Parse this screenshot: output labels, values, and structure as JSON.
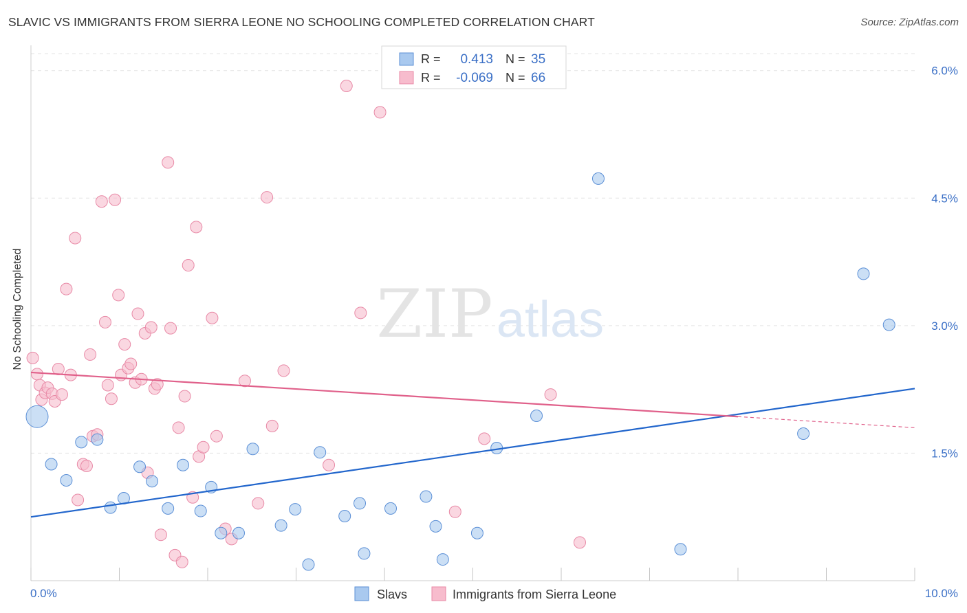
{
  "header": {
    "title": "SLAVIC VS IMMIGRANTS FROM SIERRA LEONE NO SCHOOLING COMPLETED CORRELATION CHART",
    "source": "Source: ZipAtlas.com"
  },
  "watermark": {
    "part1": "ZIP",
    "part2": "atlas"
  },
  "legend_box": {
    "rows": [
      {
        "r_label": "R =",
        "r_value": "0.413",
        "n_label": "N =",
        "n_value": "35"
      },
      {
        "r_label": "R =",
        "r_value": "-0.069",
        "n_label": "N =",
        "n_value": "66"
      }
    ]
  },
  "colors": {
    "slavs_fill": "#a9c9ef",
    "slavs_stroke": "#5b8fd6",
    "slavs_line": "#2266cc",
    "sl_fill": "#f7bccd",
    "sl_stroke": "#e889a6",
    "sl_line": "#e0608a",
    "value_text": "#3a6fc6",
    "grid": "#e3e3e3",
    "axis": "#cccccc"
  },
  "chart_data": {
    "type": "scatter",
    "xlabel": "",
    "ylabel": "No Schooling Completed",
    "xlim": [
      0,
      10
    ],
    "ylim": [
      0,
      6.2
    ],
    "x_ticks": [
      0,
      1,
      2,
      3,
      4,
      5,
      6,
      7,
      8,
      9,
      10
    ],
    "x_tick_labels_shown": [
      {
        "value": 0,
        "label": "0.0%"
      },
      {
        "value": 10,
        "label": "10.0%"
      }
    ],
    "y_ticks": [
      {
        "value": 1.5,
        "label": "1.5%"
      },
      {
        "value": 3.0,
        "label": "3.0%"
      },
      {
        "value": 4.5,
        "label": "4.5%"
      },
      {
        "value": 6.0,
        "label": "6.0%"
      }
    ],
    "grid": true,
    "legend_position": "top-center",
    "series": [
      {
        "name": "Slavs",
        "color": "#a9c9ef",
        "points": [
          {
            "x": 0.07,
            "y": 1.93,
            "big": true
          },
          {
            "x": 0.23,
            "y": 1.37
          },
          {
            "x": 0.4,
            "y": 1.18
          },
          {
            "x": 0.57,
            "y": 1.63
          },
          {
            "x": 0.75,
            "y": 1.66
          },
          {
            "x": 0.9,
            "y": 0.86
          },
          {
            "x": 1.05,
            "y": 0.97
          },
          {
            "x": 1.23,
            "y": 1.34
          },
          {
            "x": 1.37,
            "y": 1.17
          },
          {
            "x": 1.55,
            "y": 0.85
          },
          {
            "x": 1.72,
            "y": 1.36
          },
          {
            "x": 1.92,
            "y": 0.82
          },
          {
            "x": 2.04,
            "y": 1.1
          },
          {
            "x": 2.15,
            "y": 0.56
          },
          {
            "x": 2.35,
            "y": 0.56
          },
          {
            "x": 2.51,
            "y": 1.55
          },
          {
            "x": 2.83,
            "y": 0.65
          },
          {
            "x": 2.99,
            "y": 0.84
          },
          {
            "x": 3.14,
            "y": 0.19
          },
          {
            "x": 3.27,
            "y": 1.51
          },
          {
            "x": 3.55,
            "y": 0.76
          },
          {
            "x": 3.72,
            "y": 0.91
          },
          {
            "x": 3.77,
            "y": 0.32
          },
          {
            "x": 4.07,
            "y": 0.85
          },
          {
            "x": 4.47,
            "y": 0.99
          },
          {
            "x": 4.58,
            "y": 0.64
          },
          {
            "x": 4.66,
            "y": 0.25
          },
          {
            "x": 5.05,
            "y": 0.56
          },
          {
            "x": 5.27,
            "y": 1.56
          },
          {
            "x": 5.72,
            "y": 1.94
          },
          {
            "x": 6.42,
            "y": 4.73
          },
          {
            "x": 7.35,
            "y": 0.37
          },
          {
            "x": 8.74,
            "y": 1.73
          },
          {
            "x": 9.42,
            "y": 3.61
          },
          {
            "x": 9.71,
            "y": 3.01
          }
        ],
        "trend": {
          "x0": 0,
          "y0": 0.75,
          "x1": 10,
          "y1": 2.26
        }
      },
      {
        "name": "Immigrants from Sierra Leone",
        "color": "#f7bccd",
        "points": [
          {
            "x": 0.02,
            "y": 2.62
          },
          {
            "x": 0.07,
            "y": 2.43
          },
          {
            "x": 0.1,
            "y": 2.3
          },
          {
            "x": 0.12,
            "y": 2.13
          },
          {
            "x": 0.16,
            "y": 2.21
          },
          {
            "x": 0.19,
            "y": 2.27
          },
          {
            "x": 0.24,
            "y": 2.2
          },
          {
            "x": 0.27,
            "y": 2.11
          },
          {
            "x": 0.31,
            "y": 2.49
          },
          {
            "x": 0.35,
            "y": 2.19
          },
          {
            "x": 0.4,
            "y": 3.43
          },
          {
            "x": 0.45,
            "y": 2.42
          },
          {
            "x": 0.5,
            "y": 4.03
          },
          {
            "x": 0.53,
            "y": 0.95
          },
          {
            "x": 0.59,
            "y": 1.37
          },
          {
            "x": 0.63,
            "y": 1.35
          },
          {
            "x": 0.67,
            "y": 2.66
          },
          {
            "x": 0.7,
            "y": 1.7
          },
          {
            "x": 0.75,
            "y": 1.72
          },
          {
            "x": 0.8,
            "y": 4.46
          },
          {
            "x": 0.84,
            "y": 3.04
          },
          {
            "x": 0.87,
            "y": 2.3
          },
          {
            "x": 0.91,
            "y": 2.14
          },
          {
            "x": 0.95,
            "y": 4.48
          },
          {
            "x": 0.99,
            "y": 3.36
          },
          {
            "x": 1.02,
            "y": 2.42
          },
          {
            "x": 1.06,
            "y": 2.78
          },
          {
            "x": 1.1,
            "y": 2.5
          },
          {
            "x": 1.13,
            "y": 2.55
          },
          {
            "x": 1.18,
            "y": 2.33
          },
          {
            "x": 1.21,
            "y": 3.14
          },
          {
            "x": 1.25,
            "y": 2.37
          },
          {
            "x": 1.29,
            "y": 2.91
          },
          {
            "x": 1.32,
            "y": 1.27
          },
          {
            "x": 1.36,
            "y": 2.98
          },
          {
            "x": 1.4,
            "y": 2.26
          },
          {
            "x": 1.43,
            "y": 2.31
          },
          {
            "x": 1.47,
            "y": 0.54
          },
          {
            "x": 1.55,
            "y": 4.92
          },
          {
            "x": 1.58,
            "y": 2.97
          },
          {
            "x": 1.63,
            "y": 0.3
          },
          {
            "x": 1.67,
            "y": 1.8
          },
          {
            "x": 1.71,
            "y": 0.22
          },
          {
            "x": 1.74,
            "y": 2.17
          },
          {
            "x": 1.78,
            "y": 3.71
          },
          {
            "x": 1.83,
            "y": 0.98
          },
          {
            "x": 1.87,
            "y": 4.16
          },
          {
            "x": 1.9,
            "y": 1.46
          },
          {
            "x": 1.95,
            "y": 1.57
          },
          {
            "x": 2.05,
            "y": 3.09
          },
          {
            "x": 2.1,
            "y": 1.7
          },
          {
            "x": 2.2,
            "y": 0.61
          },
          {
            "x": 2.27,
            "y": 0.49
          },
          {
            "x": 2.42,
            "y": 2.35
          },
          {
            "x": 2.57,
            "y": 0.91
          },
          {
            "x": 2.67,
            "y": 4.51
          },
          {
            "x": 2.73,
            "y": 1.82
          },
          {
            "x": 2.86,
            "y": 2.47
          },
          {
            "x": 3.37,
            "y": 1.36
          },
          {
            "x": 3.57,
            "y": 5.82
          },
          {
            "x": 3.73,
            "y": 3.15
          },
          {
            "x": 3.95,
            "y": 5.51
          },
          {
            "x": 4.8,
            "y": 0.81
          },
          {
            "x": 5.13,
            "y": 1.67
          },
          {
            "x": 5.88,
            "y": 2.19
          },
          {
            "x": 6.21,
            "y": 0.45
          }
        ],
        "trend": {
          "x0": 0,
          "y0": 2.45,
          "x1": 8.0,
          "y1": 1.93,
          "dash_x1": 10,
          "dash_y1": 1.8
        }
      }
    ]
  },
  "bottom_legend": [
    {
      "label": "Slavs"
    },
    {
      "label": "Immigrants from Sierra Leone"
    }
  ]
}
